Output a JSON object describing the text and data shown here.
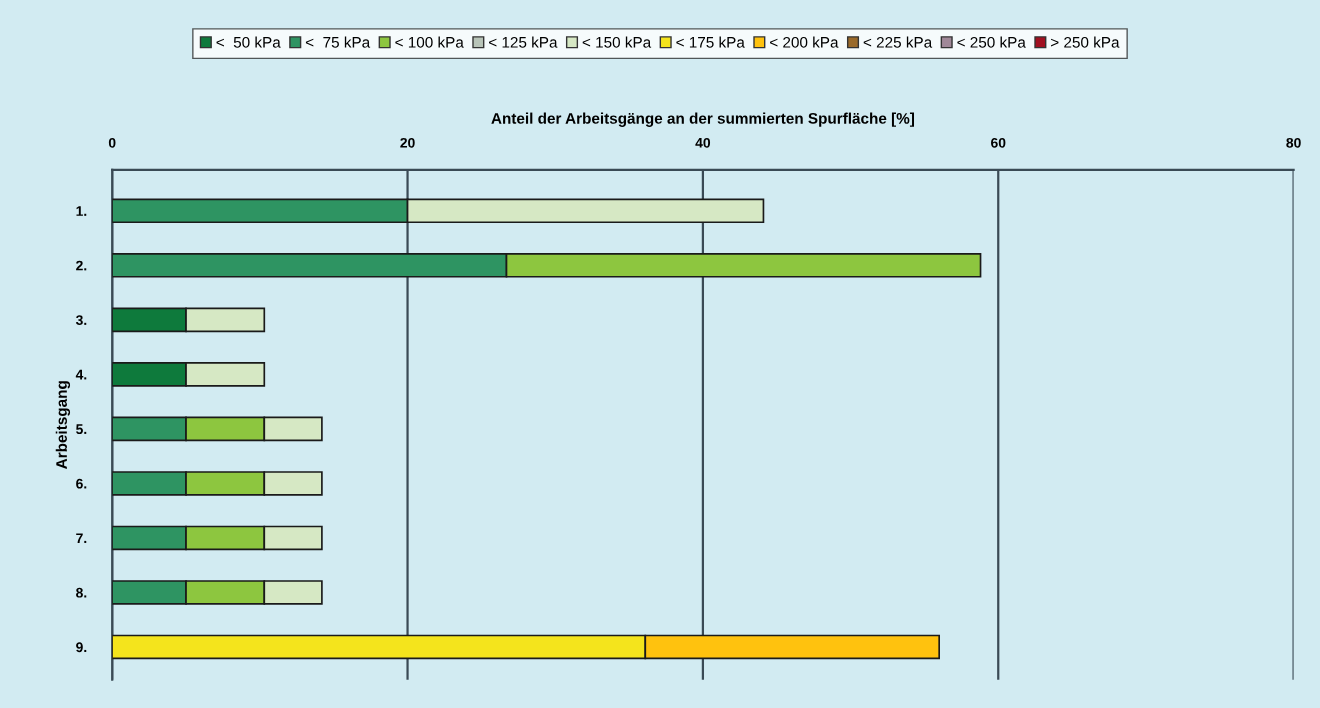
{
  "chart_data": {
    "type": "bar",
    "orientation": "horizontal",
    "stacked": true,
    "xlabel": "Anteil der Arbeitsgänge an der summierten Spurfläche [%]",
    "ylabel": "Arbeitsgang",
    "categories": [
      "1.",
      "2.",
      "3.",
      "4.",
      "5.",
      "6.",
      "7.",
      "8.",
      "9."
    ],
    "xlim": [
      0,
      80
    ],
    "xticks": [
      0,
      20,
      40,
      60,
      80
    ],
    "grid": "x",
    "legend": "top",
    "series": [
      {
        "name": "<  50 kPa",
        "color": "#0e7a3c",
        "values": [
          null,
          null,
          5,
          5,
          null,
          null,
          null,
          null,
          null
        ]
      },
      {
        "name": "<  75 kPa",
        "color": "#2e9462",
        "values": [
          20,
          26.7,
          null,
          null,
          5,
          5,
          5,
          5,
          null
        ]
      },
      {
        "name": "< 100 kPa",
        "color": "#8dc63f",
        "values": [
          null,
          32.1,
          null,
          null,
          5.3,
          5.3,
          5.3,
          5.3,
          null
        ]
      },
      {
        "name": "< 125 kPa",
        "color": "#b8c4b8",
        "values": [
          null,
          null,
          null,
          null,
          null,
          null,
          null,
          null,
          null
        ]
      },
      {
        "name": "< 150 kPa",
        "color": "#d6e8c4",
        "values": [
          24.1,
          null,
          5.3,
          5.3,
          3.9,
          3.9,
          3.9,
          3.9,
          null
        ]
      },
      {
        "name": "< 175 kPa",
        "color": "#f4e41c",
        "values": [
          null,
          null,
          null,
          null,
          null,
          null,
          null,
          null,
          36.1
        ]
      },
      {
        "name": "< 200 kPa",
        "color": "#ffc20e",
        "values": [
          null,
          null,
          null,
          null,
          null,
          null,
          null,
          null,
          19.9
        ]
      },
      {
        "name": "< 225 kPa",
        "color": "#9a6a2a",
        "values": [
          null,
          null,
          null,
          null,
          null,
          null,
          null,
          null,
          null
        ]
      },
      {
        "name": "< 250 kPa",
        "color": "#a08898",
        "values": [
          null,
          null,
          null,
          null,
          null,
          null,
          null,
          null,
          null
        ]
      },
      {
        "name": "> 250 kPa",
        "color": "#a01020",
        "values": [
          null,
          null,
          null,
          null,
          null,
          null,
          null,
          null,
          null
        ]
      }
    ]
  }
}
